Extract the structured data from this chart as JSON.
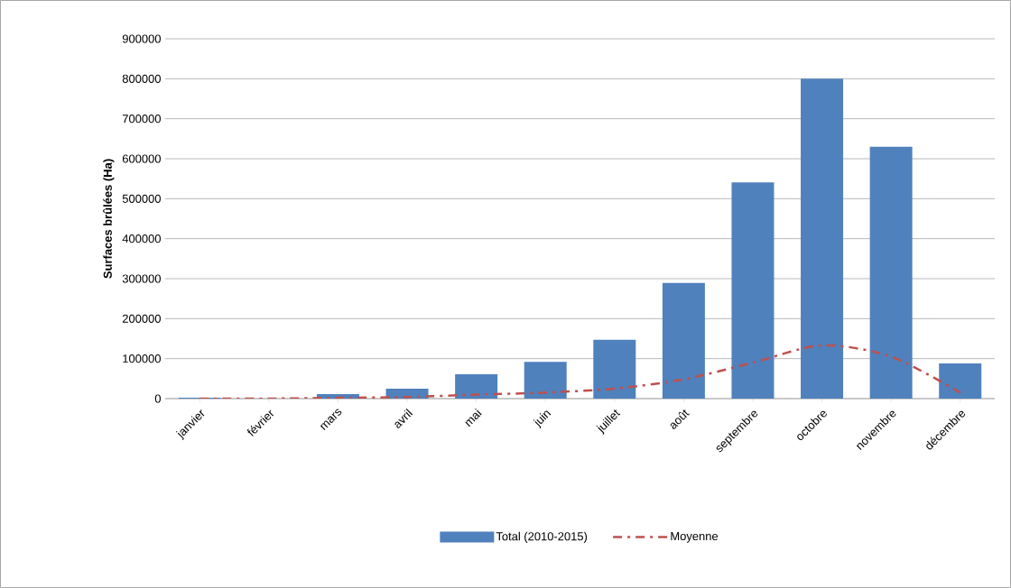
{
  "chart_data": {
    "type": "bar",
    "ylabel": "Surfaces brûlées (Ha)",
    "categories": [
      "janvier",
      "février",
      "mars",
      "avril",
      "mai",
      "juin",
      "juillet",
      "août",
      "septembre",
      "octobre",
      "novembre",
      "décembre"
    ],
    "series": [
      {
        "name": "Total (2010-2015)",
        "color": "#4f81bd",
        "values": [
          2000,
          null,
          11000,
          25000,
          61000,
          92000,
          147000,
          289000,
          541000,
          800000,
          630000,
          88000
        ]
      },
      {
        "name": "Moyenne",
        "type": "line",
        "color": "#c0504d",
        "line_style": "dashdot",
        "marker": "none",
        "values": [
          0,
          0,
          2000,
          4000,
          10000,
          15000,
          25000,
          48000,
          90000,
          133000,
          105000,
          15000
        ]
      }
    ],
    "ylim": [
      0,
      900000
    ],
    "yticks": [
      0,
      100000,
      200000,
      300000,
      400000,
      500000,
      600000,
      700000,
      800000,
      900000
    ],
    "grid": "y",
    "legend": "bottom"
  }
}
